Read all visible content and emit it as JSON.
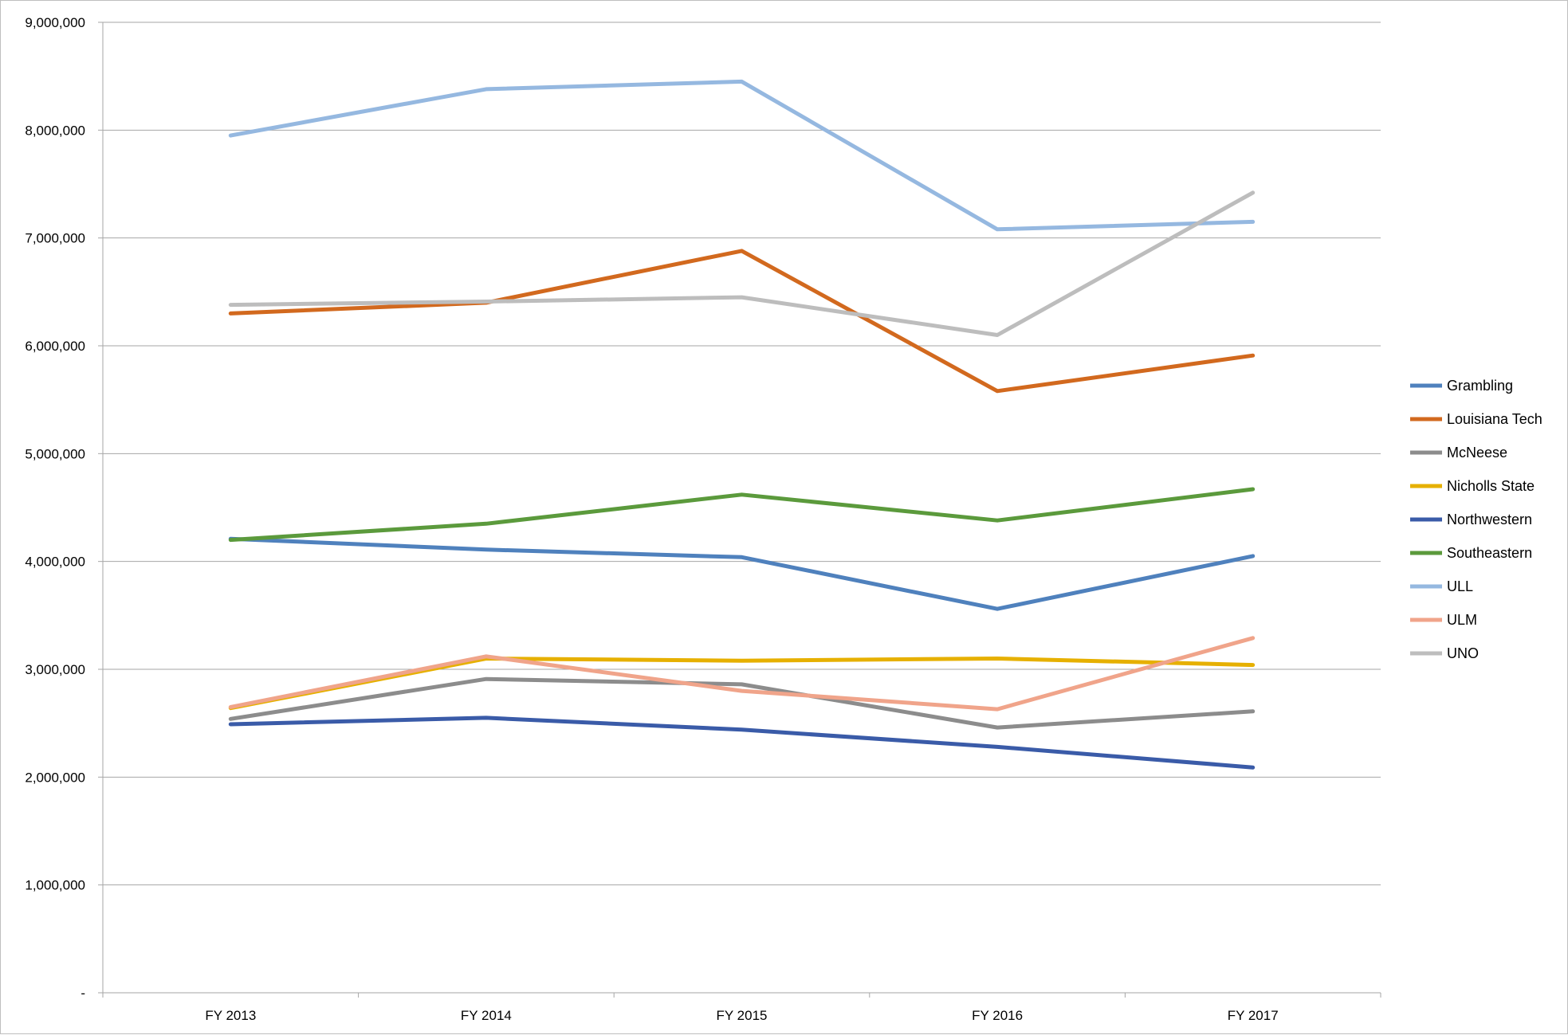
{
  "chart_data": {
    "type": "line",
    "title": "",
    "xlabel": "",
    "ylabel": "",
    "categories": [
      "FY 2013",
      "FY 2014",
      "FY 2015",
      "FY 2016",
      "FY 2017"
    ],
    "ylim": [
      0,
      9000000
    ],
    "yticks": [
      0,
      1000000,
      2000000,
      3000000,
      4000000,
      5000000,
      6000000,
      7000000,
      8000000,
      9000000
    ],
    "ytick_labels": [
      "-",
      "1,000,000",
      "2,000,000",
      "3,000,000",
      "4,000,000",
      "5,000,000",
      "6,000,000",
      "7,000,000",
      "8,000,000",
      "9,000,000"
    ],
    "grid": "horizontal",
    "legend_position": "right",
    "series": [
      {
        "name": "Grambling",
        "color": "#4f81bd",
        "values": [
          4210000,
          4110000,
          4040000,
          3560000,
          4050000
        ]
      },
      {
        "name": "Louisiana Tech",
        "color": "#d2691e",
        "values": [
          6300000,
          6400000,
          6880000,
          5580000,
          5910000
        ]
      },
      {
        "name": "McNeese",
        "color": "#8c8c8c",
        "values": [
          2540000,
          2910000,
          2860000,
          2460000,
          2610000
        ]
      },
      {
        "name": "Nicholls State",
        "color": "#e6b000",
        "values": [
          2640000,
          3100000,
          3080000,
          3100000,
          3040000
        ]
      },
      {
        "name": "Northwestern",
        "color": "#3a5ba8",
        "values": [
          2490000,
          2550000,
          2440000,
          2280000,
          2090000
        ]
      },
      {
        "name": "Southeastern",
        "color": "#5b9a3c",
        "values": [
          4200000,
          4350000,
          4620000,
          4380000,
          4670000
        ]
      },
      {
        "name": "ULL",
        "color": "#95b8e0",
        "values": [
          7950000,
          8380000,
          8450000,
          7080000,
          7150000
        ]
      },
      {
        "name": "ULM",
        "color": "#f0a48a",
        "values": [
          2650000,
          3120000,
          2800000,
          2630000,
          3290000
        ]
      },
      {
        "name": "UNO",
        "color": "#bdbdbd",
        "values": [
          6380000,
          6410000,
          6450000,
          6100000,
          7420000
        ]
      }
    ]
  }
}
